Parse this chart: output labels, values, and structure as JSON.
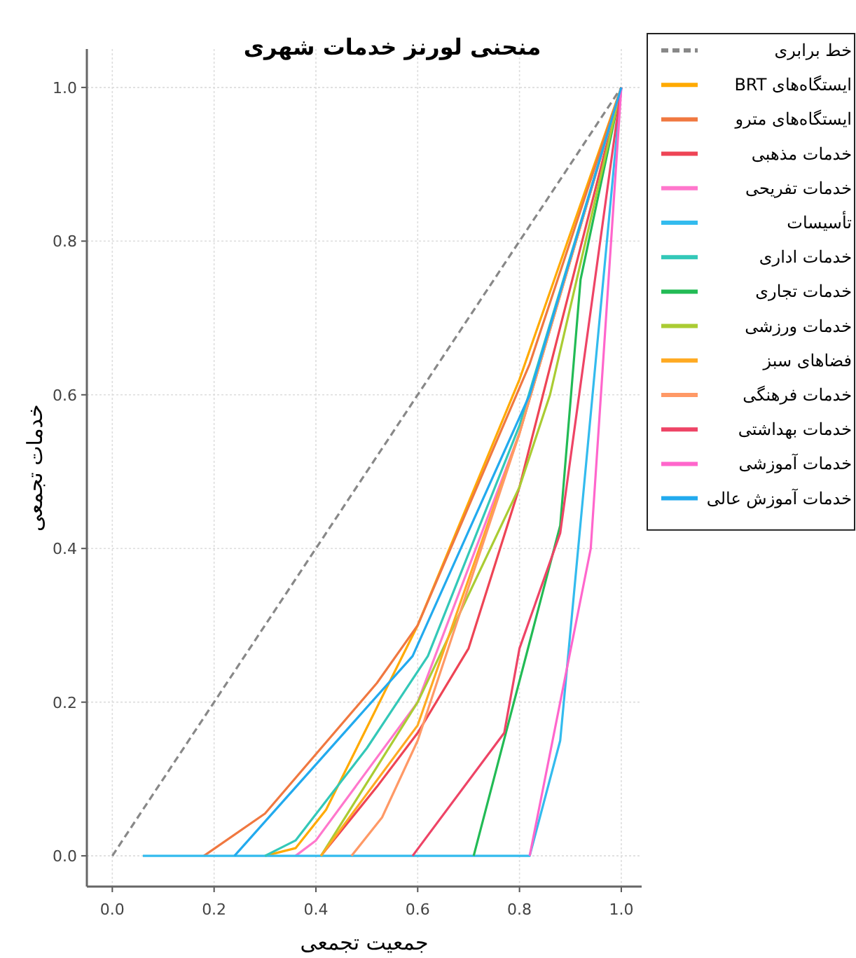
{
  "chart_data": {
    "type": "line",
    "title": "منحنی لورنز خدمات شهری",
    "xlabel": "جمعیت تجمعی",
    "ylabel": "خدمات تجمعی",
    "xlim": [
      -0.05,
      1.04
    ],
    "ylim": [
      -0.04,
      1.05
    ],
    "xticks": [
      {
        "value": 0,
        "label": "0.0"
      },
      0.2,
      0.4,
      0.6,
      0.8,
      {
        "value": 1,
        "label": "1.0"
      }
    ],
    "yticks": [
      {
        "value": 0,
        "label": "0.0"
      },
      0.2,
      0.4,
      0.6,
      0.8,
      {
        "value": 1,
        "label": "1.0"
      }
    ],
    "grid": true,
    "legend": "top right",
    "series": [
      {
        "name": "خط برابری",
        "color": "#888888",
        "line_style": "dashed",
        "x": [
          0,
          1
        ],
        "values": [
          0,
          1
        ]
      },
      {
        "name": "ایستگاه‌های BRT",
        "color": "#ffaa00",
        "x": [
          0.3,
          0.36,
          0.42,
          0.6,
          0.8,
          1
        ],
        "values": [
          0,
          0.01,
          0.06,
          0.3,
          0.62,
          1
        ]
      },
      {
        "name": "ایستگاه‌های مترو",
        "color": "#f07840",
        "x": [
          0.18,
          0.3,
          0.52,
          0.6,
          0.82,
          1
        ],
        "values": [
          0,
          0.055,
          0.225,
          0.3,
          0.64,
          1
        ]
      },
      {
        "name": "خدمات مذهبی",
        "color": "#ee4455",
        "x": [
          0.41,
          0.52,
          0.6,
          0.7,
          0.8,
          1
        ],
        "values": [
          0,
          0.09,
          0.16,
          0.27,
          0.48,
          1
        ]
      },
      {
        "name": "خدمات تفریحی",
        "color": "#ff77cc",
        "x": [
          0.36,
          0.4,
          0.6,
          0.8,
          1
        ],
        "values": [
          0,
          0.02,
          0.2,
          0.55,
          1
        ]
      },
      {
        "name": "تأسیسات",
        "color": "#33bbee",
        "x": [
          0.06,
          0.82,
          0.88,
          1
        ],
        "values": [
          0,
          0,
          0.15,
          1
        ]
      },
      {
        "name": "خدمات اداری",
        "color": "#33c8b8",
        "x": [
          0.3,
          0.36,
          0.5,
          0.62,
          0.8,
          1
        ],
        "values": [
          0,
          0.02,
          0.14,
          0.26,
          0.56,
          1
        ]
      },
      {
        "name": "خدمات تجاری",
        "color": "#22bb55",
        "x": [
          0.71,
          0.88,
          0.92,
          1
        ],
        "values": [
          0,
          0.43,
          0.75,
          1
        ]
      },
      {
        "name": "خدمات ورزشی",
        "color": "#aacc33",
        "x": [
          0.41,
          0.6,
          0.8,
          0.86,
          1
        ],
        "values": [
          0,
          0.2,
          0.48,
          0.6,
          1
        ]
      },
      {
        "name": "فضاهای سبز",
        "color": "#ffaa22",
        "x": [
          0.41,
          0.6,
          0.8,
          1
        ],
        "values": [
          0,
          0.17,
          0.55,
          1
        ]
      },
      {
        "name": "خدمات فرهنگی",
        "color": "#ff9966",
        "x": [
          0.47,
          0.53,
          0.6,
          0.8,
          1
        ],
        "values": [
          0,
          0.05,
          0.15,
          0.55,
          1
        ]
      },
      {
        "name": "خدمات بهداشتی",
        "color": "#ee4466",
        "x": [
          0.59,
          0.77,
          0.8,
          0.88,
          1
        ],
        "values": [
          0,
          0.16,
          0.27,
          0.42,
          1
        ]
      },
      {
        "name": "خدمات آموزشی",
        "color": "#ff66cc",
        "x": [
          0.82,
          0.94,
          1
        ],
        "values": [
          0,
          0.4,
          1
        ]
      },
      {
        "name": "خدمات آموزش عالی",
        "color": "#22aaee",
        "x": [
          0.24,
          0.59,
          0.82,
          1
        ],
        "values": [
          0,
          0.26,
          0.6,
          1
        ]
      }
    ]
  }
}
